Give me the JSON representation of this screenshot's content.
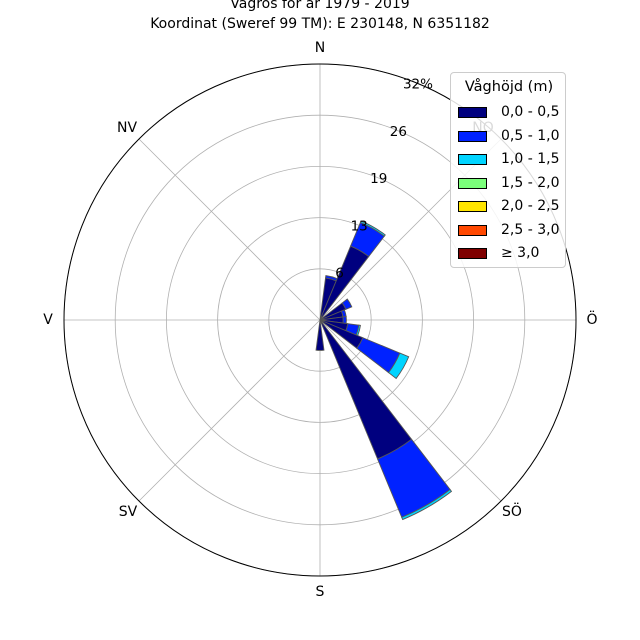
{
  "title": {
    "line1": "Vågros för år 1979 - 2019",
    "line2": "Koordinat (Sweref 99 TM): E 230148, N 6351182"
  },
  "directions": {
    "n": "N",
    "no": "NO",
    "o": "Ö",
    "so": "SÖ",
    "s": "S",
    "sv": "SV",
    "v": "V",
    "nv": "NV"
  },
  "ring_labels": [
    "6",
    "13",
    "19",
    "26",
    "32%"
  ],
  "legend": {
    "title": "Våghöjd (m)",
    "items": [
      {
        "label": "0,0 - 0,5",
        "color": "#00007f"
      },
      {
        "label": "0,5 - 1,0",
        "color": "#0022ff"
      },
      {
        "label": "1,0 - 1,5",
        "color": "#00d4ff"
      },
      {
        "label": "1,5 - 2,0",
        "color": "#7bff7b"
      },
      {
        "label": "2,0 - 2,5",
        "color": "#ffe500"
      },
      {
        "label": "2,5 - 3,0",
        "color": "#ff4800"
      },
      {
        "label": "≥ 3,0",
        "color": "#7f0000"
      }
    ]
  },
  "chart_data": {
    "type": "polar-stacked-bar",
    "unit": "%",
    "rmax": 32,
    "rings": [
      6.4,
      12.8,
      19.2,
      25.6,
      32.0
    ],
    "sector_width_deg": 15,
    "sectors": [
      {
        "direction_deg": 15,
        "values": [
          5.3,
          0.3,
          0,
          0,
          0,
          0,
          0
        ]
      },
      {
        "direction_deg": 30,
        "values": [
          10.0,
          3.2,
          0.2,
          0,
          0,
          0,
          0
        ]
      },
      {
        "direction_deg": 60,
        "values": [
          3.5,
          0.8,
          0,
          0,
          0,
          0,
          0
        ]
      },
      {
        "direction_deg": 75,
        "values": [
          2.9,
          0.4,
          0,
          0,
          0,
          0,
          0
        ]
      },
      {
        "direction_deg": 90,
        "values": [
          2.9,
          0.4,
          0,
          0,
          0,
          0,
          0
        ]
      },
      {
        "direction_deg": 105,
        "values": [
          3.5,
          1.4,
          0.2,
          0,
          0,
          0,
          0
        ]
      },
      {
        "direction_deg": 120,
        "values": [
          5.8,
          5.0,
          1.2,
          0,
          0,
          0,
          0
        ]
      },
      {
        "direction_deg": 150,
        "values": [
          18.8,
          7.9,
          0.3,
          0,
          0,
          0,
          0
        ]
      },
      {
        "direction_deg": 180,
        "values": [
          3.8,
          0,
          0,
          0,
          0,
          0,
          0
        ]
      }
    ],
    "grid": true
  }
}
